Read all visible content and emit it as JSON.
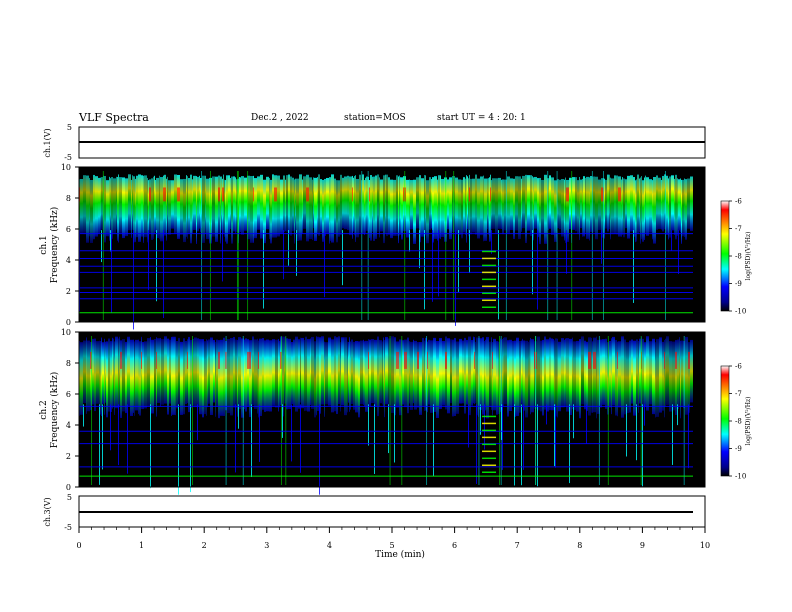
{
  "header": {
    "title": "VLF Spectra",
    "date": "Dec.2 , 2022",
    "station": "station=MOS",
    "start": "start UT = 4 : 20: 1"
  },
  "colors": {
    "background": "#000000",
    "axis": "#000000",
    "colormap": [
      "#ffffff",
      "#ff0000",
      "#ffff00",
      "#00ff00",
      "#00ffff",
      "#0000ff",
      "#00008b",
      "#000000"
    ]
  },
  "chart_data": [
    {
      "type": "line",
      "id": "ch1-voltage",
      "ylabel": "ch.1(V)",
      "ylim": [
        -5,
        5
      ],
      "yticks": [
        "5",
        "-5"
      ],
      "x": [
        0,
        10
      ],
      "y": [
        0,
        0
      ],
      "note_visible": ""
    },
    {
      "type": "heatmap",
      "id": "ch1-spectrogram",
      "ylabel_line1": "ch.1",
      "ylabel_line2": "Frequency (kHz)",
      "ylim": [
        0,
        10
      ],
      "xlim": [
        0,
        10
      ],
      "yticks": [
        "0",
        "2",
        "4",
        "6",
        "8",
        "10"
      ],
      "energy_band_khz": [
        5.8,
        9.4
      ],
      "horizontal_lines_khz": [
        0.6,
        1.5,
        1.9,
        2.2,
        3.2,
        3.6,
        4.1,
        4.6,
        5.7
      ],
      "colorbar": {
        "label": "log(PSD)(V²/Hz)",
        "ticks": [
          "-6",
          "-7",
          "-8",
          "-9",
          "-10"
        ],
        "range": [
          -10,
          -6
        ]
      }
    },
    {
      "type": "heatmap",
      "id": "ch2-spectrogram",
      "ylabel_line1": "ch.2",
      "ylabel_line2": "Frequency (kHz)",
      "ylim": [
        0,
        10
      ],
      "xlim": [
        0,
        10
      ],
      "yticks": [
        "0",
        "2",
        "4",
        "6",
        "8",
        "10"
      ],
      "energy_band_khz": [
        5.2,
        9.6
      ],
      "horizontal_lines_khz": [
        0.7,
        1.3,
        2.8,
        3.6,
        5.2
      ],
      "colorbar": {
        "label": "log(PSD)(V²/Hz)",
        "ticks": [
          "-6",
          "-7",
          "-8",
          "-9",
          "-10"
        ],
        "range": [
          -10,
          -6
        ]
      }
    },
    {
      "type": "line",
      "id": "ch3-voltage",
      "ylabel": "ch.3(V)",
      "ylim": [
        -5,
        5
      ],
      "yticks": [
        "5",
        "-5"
      ],
      "x": [
        0,
        10
      ],
      "y": [
        0,
        0
      ]
    }
  ],
  "xaxis": {
    "label": "Time (min)",
    "range": [
      0,
      10
    ],
    "ticks": [
      "0",
      "1",
      "2",
      "3",
      "4",
      "5",
      "6",
      "7",
      "8",
      "9",
      "10"
    ]
  }
}
